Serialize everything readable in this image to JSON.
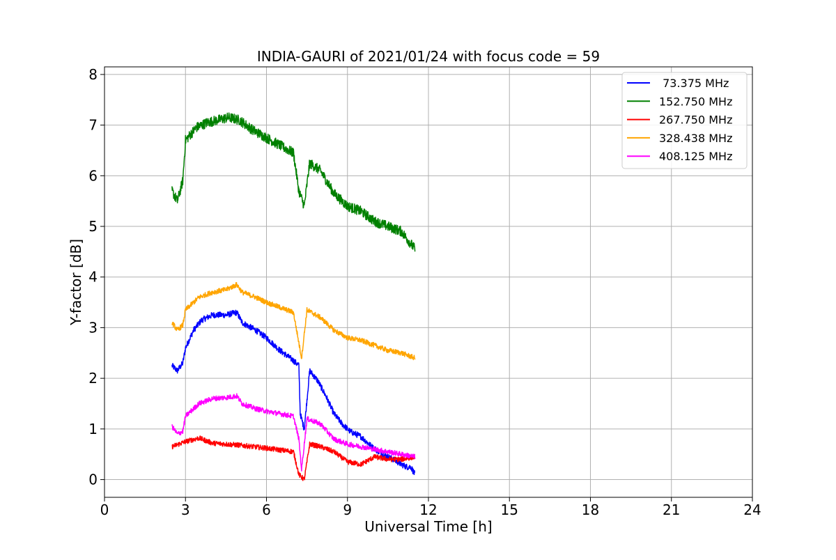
{
  "chart_data": {
    "type": "line",
    "title": "INDIA-GAURI of 2021/01/24 with focus code = 59",
    "xlabel": "Universal Time [h]",
    "ylabel": "Y-factor [dB]",
    "xlim": [
      0,
      24
    ],
    "ylim": [
      -0.35,
      8.15
    ],
    "xticks": [
      0,
      3,
      6,
      9,
      12,
      15,
      18,
      21,
      24
    ],
    "yticks": [
      0,
      1,
      2,
      3,
      4,
      5,
      6,
      7,
      8
    ],
    "grid": true,
    "legend_position": "top-right",
    "series": [
      {
        "name": " 73.375 MHz",
        "color": "#0000ff",
        "noise": 0.06,
        "x": [
          2.5,
          2.7,
          2.9,
          3.0,
          3.3,
          3.6,
          4.0,
          4.5,
          4.9,
          5.1,
          5.6,
          6.0,
          6.5,
          7.0,
          7.2,
          7.25,
          7.4,
          7.6,
          7.9,
          8.2,
          8.5,
          8.8,
          9.1,
          9.5,
          9.9,
          10.3,
          10.7,
          11.0,
          11.2,
          11.35,
          11.5
        ],
        "y": [
          2.25,
          2.15,
          2.3,
          2.6,
          2.95,
          3.15,
          3.25,
          3.25,
          3.3,
          3.1,
          2.95,
          2.8,
          2.55,
          2.35,
          2.25,
          1.3,
          1.0,
          2.15,
          1.95,
          1.65,
          1.3,
          1.1,
          0.95,
          0.85,
          0.65,
          0.5,
          0.4,
          0.3,
          0.25,
          0.25,
          0.1
        ]
      },
      {
        "name": "152.750 MHz",
        "color": "#008000",
        "noise": 0.1,
        "x": [
          2.5,
          2.7,
          2.9,
          3.0,
          3.4,
          3.8,
          4.2,
          4.6,
          5.0,
          5.5,
          6.0,
          6.5,
          7.0,
          7.2,
          7.4,
          7.6,
          8.0,
          8.5,
          9.0,
          9.5,
          10.0,
          10.5,
          11.0,
          11.5
        ],
        "y": [
          5.7,
          5.5,
          5.9,
          6.7,
          6.95,
          7.05,
          7.1,
          7.15,
          7.1,
          6.9,
          6.75,
          6.6,
          6.45,
          5.7,
          5.4,
          6.25,
          6.1,
          5.65,
          5.4,
          5.3,
          5.1,
          5.0,
          4.9,
          4.55
        ]
      },
      {
        "name": "267.750 MHz",
        "color": "#ff0000",
        "noise": 0.05,
        "x": [
          2.5,
          3.0,
          3.5,
          4.0,
          5.0,
          6.0,
          7.0,
          7.2,
          7.4,
          7.6,
          8.0,
          8.5,
          9.0,
          9.5,
          10.0,
          10.5,
          11.0,
          11.5
        ],
        "y": [
          0.65,
          0.75,
          0.82,
          0.72,
          0.68,
          0.62,
          0.55,
          0.1,
          0.0,
          0.7,
          0.65,
          0.55,
          0.35,
          0.3,
          0.45,
          0.4,
          0.4,
          0.45
        ]
      },
      {
        "name": "328.438 MHz",
        "color": "#ffa500",
        "noise": 0.05,
        "x": [
          2.5,
          2.7,
          2.9,
          3.0,
          3.5,
          4.0,
          4.5,
          4.9,
          5.1,
          5.6,
          6.0,
          6.5,
          7.0,
          7.2,
          7.3,
          7.5,
          8.0,
          8.5,
          9.0,
          9.5,
          10.0,
          10.5,
          11.0,
          11.5
        ],
        "y": [
          3.1,
          2.95,
          3.05,
          3.35,
          3.6,
          3.7,
          3.75,
          3.85,
          3.7,
          3.6,
          3.5,
          3.4,
          3.3,
          2.7,
          2.4,
          3.35,
          3.2,
          2.95,
          2.8,
          2.75,
          2.65,
          2.55,
          2.5,
          2.4
        ]
      },
      {
        "name": "408.125 MHz",
        "color": "#ff00ff",
        "noise": 0.05,
        "x": [
          2.5,
          2.7,
          2.9,
          3.0,
          3.5,
          4.0,
          4.5,
          4.9,
          5.1,
          5.6,
          6.0,
          6.5,
          7.0,
          7.2,
          7.3,
          7.5,
          8.0,
          8.5,
          9.0,
          9.5,
          10.0,
          10.5,
          11.0,
          11.5
        ],
        "y": [
          1.05,
          0.9,
          0.95,
          1.25,
          1.5,
          1.6,
          1.62,
          1.65,
          1.5,
          1.4,
          1.35,
          1.3,
          1.25,
          0.8,
          0.2,
          1.2,
          1.1,
          0.8,
          0.7,
          0.65,
          0.6,
          0.55,
          0.5,
          0.45
        ]
      }
    ]
  }
}
